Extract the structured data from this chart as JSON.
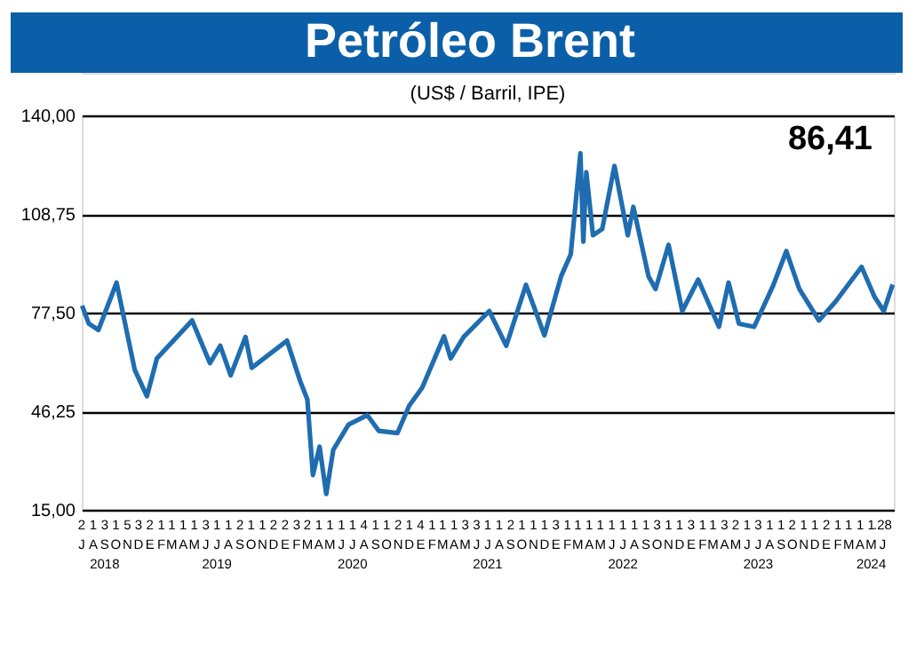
{
  "chart_data": {
    "type": "line",
    "title": "Petróleo Brent",
    "subtitle": "(US$ / Barril, IPE)",
    "annotations": [
      "86,41"
    ],
    "x": [
      "2018-07-02",
      "2018-07-20",
      "2018-08-15",
      "2018-10-03",
      "2018-11-21",
      "2018-12-24",
      "2019-01-20",
      "2019-04-25",
      "2019-06-12",
      "2019-07-10",
      "2019-08-07",
      "2019-09-16",
      "2019-10-03",
      "2020-01-06",
      "2020-02-10",
      "2020-03-01",
      "2020-03-16",
      "2020-04-03",
      "2020-04-21",
      "2020-05-10",
      "2020-06-20",
      "2020-08-10",
      "2020-09-10",
      "2020-10-30",
      "2020-12-01",
      "2021-01-05",
      "2021-03-05",
      "2021-03-23",
      "2021-04-27",
      "2021-07-05",
      "2021-08-20",
      "2021-10-12",
      "2021-12-01",
      "2022-01-15",
      "2022-02-10",
      "2022-03-08",
      "2022-03-16",
      "2022-03-24",
      "2022-04-11",
      "2022-05-06",
      "2022-06-08",
      "2022-07-14",
      "2022-07-29",
      "2022-09-08",
      "2022-09-27",
      "2022-11-01",
      "2022-12-08",
      "2023-01-20",
      "2023-03-17",
      "2023-04-12",
      "2023-05-10",
      "2023-06-20",
      "2023-08-10",
      "2023-09-15",
      "2023-10-20",
      "2023-12-12",
      "2024-01-26",
      "2024-04-05",
      "2024-05-10",
      "2024-06-04",
      "2024-06-28"
    ],
    "series": [
      {
        "color": "#1f6db0",
        "values": [
          79.7,
          74,
          72,
          87,
          59.4,
          51,
          63,
          75,
          61.5,
          67,
          57.6,
          69.8,
          60,
          68.6,
          56,
          50,
          26,
          35,
          20,
          34,
          42,
          45,
          40,
          39.3,
          48,
          53.7,
          70,
          63,
          69.8,
          78,
          67,
          86.3,
          70.3,
          89,
          96,
          128,
          100,
          122,
          102,
          104,
          124,
          102,
          111,
          89,
          85,
          99,
          78,
          88,
          73,
          87,
          74,
          73,
          86,
          97,
          85,
          75,
          81,
          92,
          82.5,
          78,
          86.41
        ]
      }
    ],
    "xlim": [
      "2018-07-01",
      "2024-07-01"
    ],
    "xticks": [
      {
        "value": "2018-07-01",
        "label": "2\nJ"
      },
      {
        "value": "2018-08-01",
        "label": "1\nA"
      },
      {
        "value": "2018-09-01",
        "label": "3\nS\n2018"
      },
      {
        "value": "2018-10-01",
        "label": "1\nO"
      },
      {
        "value": "2018-11-01",
        "label": "5\nN"
      },
      {
        "value": "2018-12-01",
        "label": "3\nD"
      },
      {
        "value": "2019-01-01",
        "label": "2\nE"
      },
      {
        "value": "2019-02-01",
        "label": "1\nF"
      },
      {
        "value": "2019-03-01",
        "label": "1\nM"
      },
      {
        "value": "2019-04-01",
        "label": "1\nA"
      },
      {
        "value": "2019-05-01",
        "label": "1\nM"
      },
      {
        "value": "2019-06-01",
        "label": "3\nJ"
      },
      {
        "value": "2019-07-01",
        "label": "1\nJ\n2019"
      },
      {
        "value": "2019-08-01",
        "label": "1\nA"
      },
      {
        "value": "2019-09-01",
        "label": "2\nS"
      },
      {
        "value": "2019-10-01",
        "label": "1\nO"
      },
      {
        "value": "2019-11-01",
        "label": "1\nN"
      },
      {
        "value": "2019-12-01",
        "label": "2\nD"
      },
      {
        "value": "2020-01-01",
        "label": "2\nE"
      },
      {
        "value": "2020-02-01",
        "label": "3\nF"
      },
      {
        "value": "2020-03-01",
        "label": "2\nM"
      },
      {
        "value": "2020-04-01",
        "label": "1\nA"
      },
      {
        "value": "2020-05-01",
        "label": "1\nM"
      },
      {
        "value": "2020-06-01",
        "label": "1\nJ"
      },
      {
        "value": "2020-07-01",
        "label": "1\nJ\n2020"
      },
      {
        "value": "2020-08-01",
        "label": "4\nA"
      },
      {
        "value": "2020-09-01",
        "label": "1\nS"
      },
      {
        "value": "2020-10-01",
        "label": "1\nO"
      },
      {
        "value": "2020-11-01",
        "label": "2\nN"
      },
      {
        "value": "2020-12-01",
        "label": "1\nD"
      },
      {
        "value": "2021-01-01",
        "label": "4\nE"
      },
      {
        "value": "2021-02-01",
        "label": "1\nF"
      },
      {
        "value": "2021-03-01",
        "label": "1\nM"
      },
      {
        "value": "2021-04-01",
        "label": "1\nA"
      },
      {
        "value": "2021-05-01",
        "label": "3\nM"
      },
      {
        "value": "2021-06-01",
        "label": "3\nJ"
      },
      {
        "value": "2021-07-01",
        "label": "1\nJ\n2021"
      },
      {
        "value": "2021-08-01",
        "label": "1\nA"
      },
      {
        "value": "2021-09-01",
        "label": "2\nS"
      },
      {
        "value": "2021-10-01",
        "label": "1\nO"
      },
      {
        "value": "2021-11-01",
        "label": "1\nN"
      },
      {
        "value": "2021-12-01",
        "label": "1\nD"
      },
      {
        "value": "2022-01-01",
        "label": "3\nE"
      },
      {
        "value": "2022-02-01",
        "label": "1\nF"
      },
      {
        "value": "2022-03-01",
        "label": "1\nM"
      },
      {
        "value": "2022-04-01",
        "label": "1\nA"
      },
      {
        "value": "2022-05-01",
        "label": "1\nM"
      },
      {
        "value": "2022-06-01",
        "label": "1\nJ"
      },
      {
        "value": "2022-07-01",
        "label": "1\nJ\n2022"
      },
      {
        "value": "2022-08-01",
        "label": "1\nA"
      },
      {
        "value": "2022-09-01",
        "label": "1\nS"
      },
      {
        "value": "2022-10-01",
        "label": "3\nO"
      },
      {
        "value": "2022-11-01",
        "label": "1\nN"
      },
      {
        "value": "2022-12-01",
        "label": "1\nD"
      },
      {
        "value": "2023-01-01",
        "label": "3\nE"
      },
      {
        "value": "2023-02-01",
        "label": "1\nF"
      },
      {
        "value": "2023-03-01",
        "label": "1\nM"
      },
      {
        "value": "2023-04-01",
        "label": "3\nA"
      },
      {
        "value": "2023-05-01",
        "label": "2\nM"
      },
      {
        "value": "2023-06-01",
        "label": "1\nJ"
      },
      {
        "value": "2023-07-01",
        "label": "3\nJ\n2023"
      },
      {
        "value": "2023-08-01",
        "label": "1\nA"
      },
      {
        "value": "2023-09-01",
        "label": "1\nS"
      },
      {
        "value": "2023-10-01",
        "label": "2\nO"
      },
      {
        "value": "2023-11-01",
        "label": "1\nN"
      },
      {
        "value": "2023-12-01",
        "label": "1\nD"
      },
      {
        "value": "2024-01-01",
        "label": "2\nE"
      },
      {
        "value": "2024-02-01",
        "label": "1\nF"
      },
      {
        "value": "2024-03-01",
        "label": "1\nM"
      },
      {
        "value": "2024-04-01",
        "label": "1\nA"
      },
      {
        "value": "2024-05-01",
        "label": "1\nM\n2024"
      },
      {
        "value": "2024-06-01",
        "label": ".28\nJ"
      }
    ],
    "ylim": [
      15,
      140
    ],
    "yticks": [
      {
        "value": 15,
        "label": "15,00"
      },
      {
        "value": 46.25,
        "label": "46,25"
      },
      {
        "value": 77.5,
        "label": "77,50"
      },
      {
        "value": 108.75,
        "label": "108,75"
      },
      {
        "value": 140,
        "label": "140,00"
      }
    ],
    "grid": "y"
  }
}
